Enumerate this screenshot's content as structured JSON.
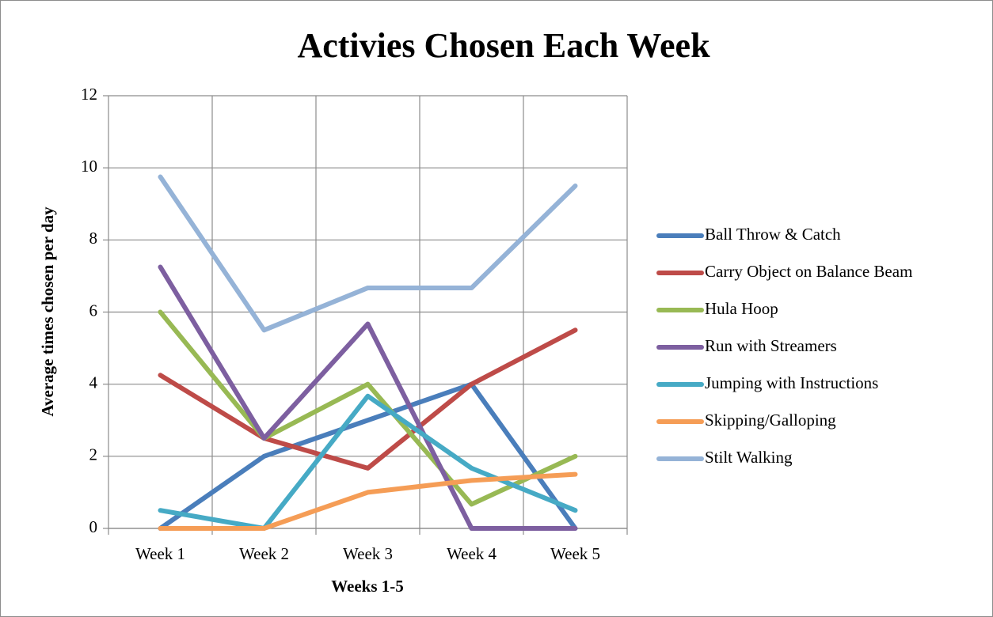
{
  "chart_data": {
    "type": "line",
    "title": "Activies Chosen Each Week",
    "x_label": "Weeks 1-5",
    "y_label": "Average times chosen per day",
    "categories": [
      "Week 1",
      "Week 2",
      "Week 3",
      "Week 4",
      "Week 5"
    ],
    "series": [
      {
        "name": "Ball Throw & Catch",
        "color": "#4a7ebb",
        "values": [
          0,
          2,
          3,
          4,
          0
        ]
      },
      {
        "name": "Carry Object on Balance Beam",
        "color": "#be4b48",
        "values": [
          4.25,
          2.5,
          1.67,
          4,
          5.5
        ]
      },
      {
        "name": "Hula Hoop",
        "color": "#98b954",
        "values": [
          6,
          2.5,
          4,
          0.67,
          2
        ]
      },
      {
        "name": "Run with Streamers",
        "color": "#7d5fa0",
        "values": [
          7.25,
          2.5,
          5.67,
          0,
          0
        ]
      },
      {
        "name": "Jumping with Instructions",
        "color": "#46aac5",
        "values": [
          0.5,
          0,
          3.67,
          1.67,
          0.5
        ]
      },
      {
        "name": "Skipping/Galloping",
        "color": "#f59d56",
        "values": [
          0,
          0,
          1,
          1.33,
          1.5
        ]
      },
      {
        "name": "Stilt Walking",
        "color": "#95b3d7",
        "values": [
          9.75,
          5.5,
          6.67,
          6.67,
          9.5
        ]
      }
    ],
    "ylim": [
      0,
      12
    ],
    "yticks": [
      0,
      2,
      4,
      6,
      8,
      10,
      12
    ],
    "grid": true,
    "legend": "right"
  }
}
